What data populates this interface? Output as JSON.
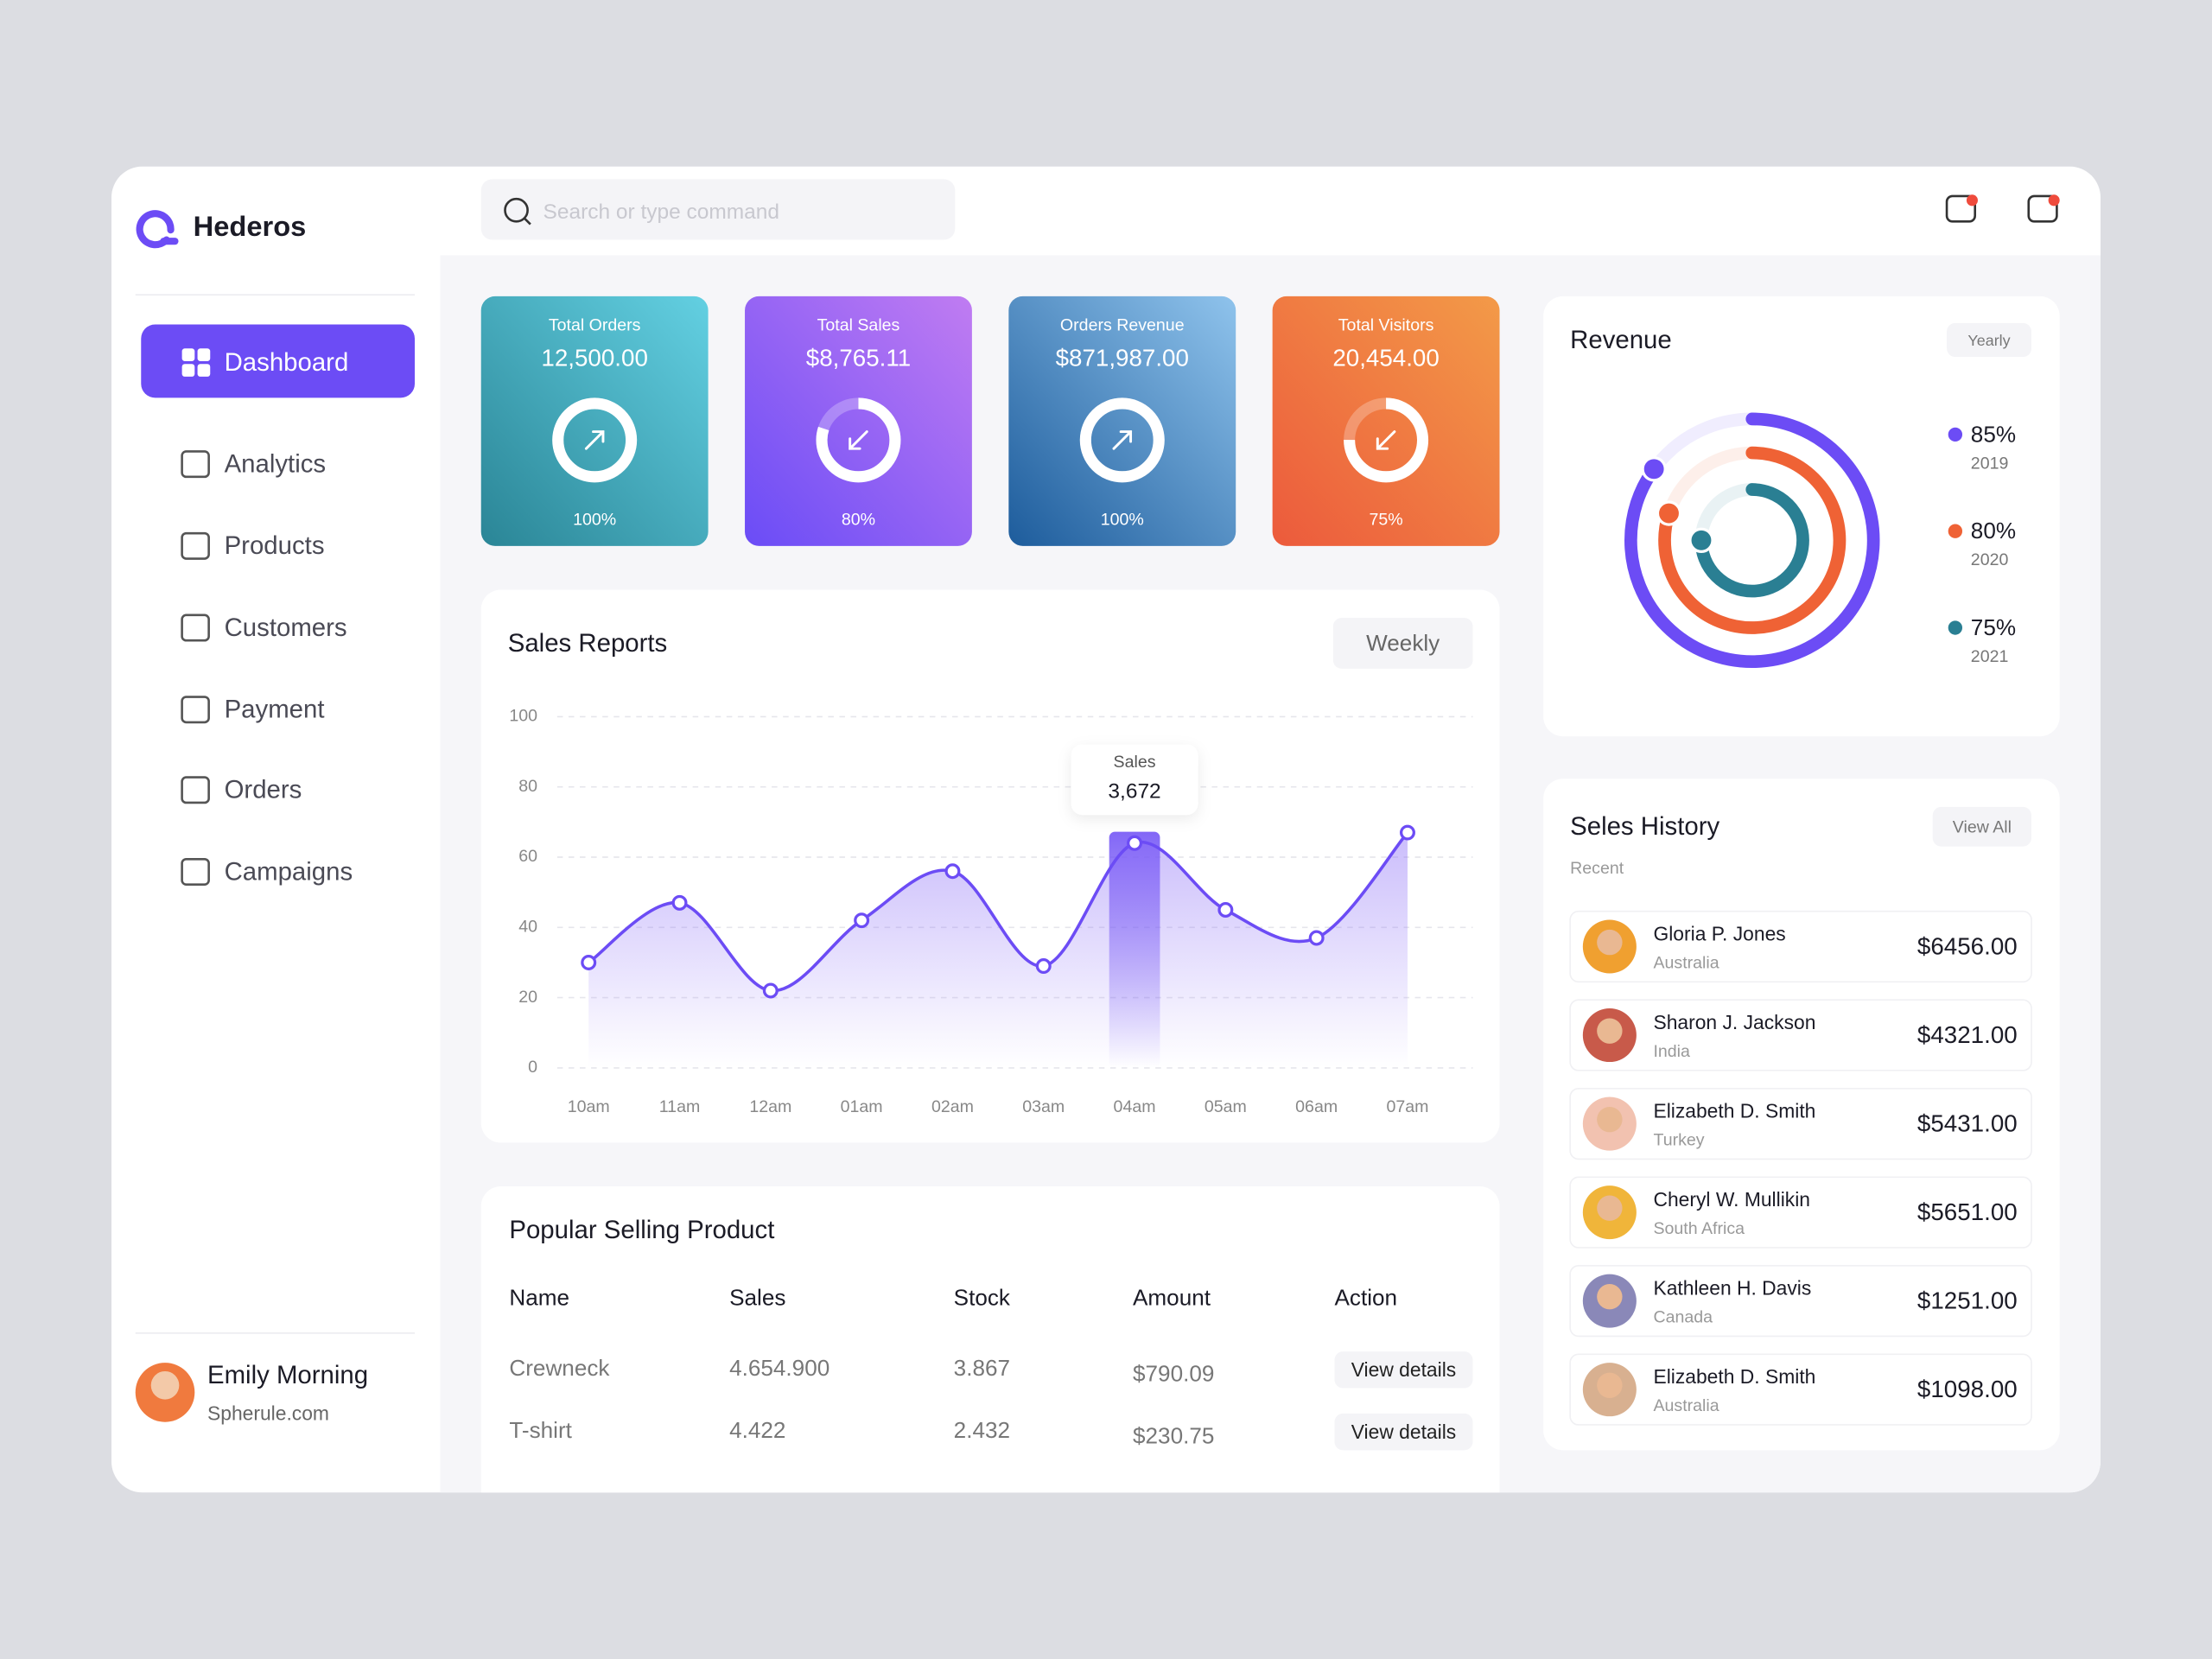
{
  "brand": "Hederos",
  "search": {
    "placeholder": "Search or type command"
  },
  "nav": [
    "Dashboard",
    "Analytics",
    "Products",
    "Customers",
    "Payment",
    "Orders",
    "Campaigns"
  ],
  "user": {
    "name": "Emily Morning",
    "site": "Spherule.com"
  },
  "cards": [
    {
      "title": "Total Orders",
      "value": "12,500.00",
      "progress": 100,
      "progress_label": "100%",
      "trend": "up"
    },
    {
      "title": "Total Sales",
      "value": "$8,765.11",
      "progress": 80,
      "progress_label": "80%",
      "trend": "down"
    },
    {
      "title": "Orders Revenue",
      "value": "$871,987.00",
      "progress": 100,
      "progress_label": "100%",
      "trend": "up"
    },
    {
      "title": "Total Visitors",
      "value": "20,454.00",
      "progress": 75,
      "progress_label": "75%",
      "trend": "down"
    }
  ],
  "chart_data": [
    {
      "type": "line",
      "title": "Sales Reports",
      "filter": "Weekly",
      "categories": [
        "10am",
        "11am",
        "12am",
        "01am",
        "02am",
        "03am",
        "04am",
        "05am",
        "06am",
        "07am"
      ],
      "values": [
        30,
        47,
        22,
        42,
        56,
        29,
        64,
        45,
        37,
        67
      ],
      "color": "#6c4cf5",
      "ylim": [
        0,
        100
      ],
      "yticks": [
        0,
        20,
        40,
        60,
        80,
        100
      ],
      "grid": true,
      "annotation": {
        "label": "Sales",
        "value": "3,672"
      }
    },
    {
      "type": "radial",
      "title": "Revenue",
      "filter": "Yearly",
      "categories": [
        "2019",
        "2020",
        "2021"
      ],
      "values": [
        85,
        80,
        75
      ],
      "value_labels": [
        "85%",
        "80%",
        "75%"
      ],
      "colors": [
        "#6c4cf5",
        "#ef6235",
        "#2a7f93"
      ]
    }
  ],
  "products": {
    "title": "Popular Selling Product",
    "columns": [
      "Name",
      "Sales",
      "Stock",
      "Amount",
      "Action"
    ],
    "rows": [
      [
        "Crewneck",
        "4.654.900",
        "3.867",
        "$790.09",
        "View details"
      ],
      [
        "T-shirt",
        "4.422",
        "2.432",
        "$230.75",
        "View details"
      ]
    ]
  },
  "history": {
    "title": "Seles History",
    "subtitle": "Recent",
    "action": "View All",
    "items": [
      {
        "name": "Gloria P. Jones",
        "country": "Australia",
        "amount": "$6456.00"
      },
      {
        "name": "Sharon J. Jackson",
        "country": "India",
        "amount": "$4321.00"
      },
      {
        "name": "Elizabeth D. Smith",
        "country": "Turkey",
        "amount": "$5431.00"
      },
      {
        "name": "Cheryl W. Mullikin",
        "country": "South Africa",
        "amount": "$5651.00"
      },
      {
        "name": "Kathleen H. Davis",
        "country": "Canada",
        "amount": "$1251.00"
      },
      {
        "name": "Elizabeth D. Smith",
        "country": "Australia",
        "amount": "$1098.00"
      }
    ]
  }
}
